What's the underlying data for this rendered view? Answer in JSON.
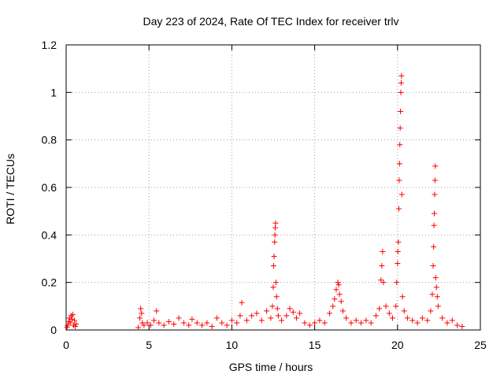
{
  "chart_data": {
    "type": "scatter",
    "title": "Day 223 of 2024, Rate Of TEC Index for receiver trlv",
    "xlabel": "GPS time / hours",
    "ylabel": "ROTI / TECUs",
    "xlim": [
      0,
      25
    ],
    "ylim": [
      0,
      1.2
    ],
    "xticks": [
      0,
      5,
      10,
      15,
      20,
      25
    ],
    "xtick_labels": [
      "0",
      "5",
      "10",
      "15",
      "20",
      "25"
    ],
    "yticks": [
      0,
      0.2,
      0.4,
      0.6,
      0.8,
      1,
      1.2
    ],
    "ytick_labels": [
      "0",
      "0.2",
      "0.4",
      "0.6",
      "0.8",
      "1",
      "1.2"
    ],
    "grid": true,
    "marker": "+",
    "marker_color": "#ff0000",
    "series": [
      {
        "name": "ROTI",
        "points": [
          [
            0.05,
            0.012
          ],
          [
            0.1,
            0.02
          ],
          [
            0.15,
            0.035
          ],
          [
            0.2,
            0.05
          ],
          [
            0.25,
            0.03
          ],
          [
            0.3,
            0.06
          ],
          [
            0.35,
            0.045
          ],
          [
            0.4,
            0.065
          ],
          [
            0.45,
            0.02
          ],
          [
            0.5,
            0.04
          ],
          [
            0.55,
            0.015
          ],
          [
            0.6,
            0.025
          ],
          [
            4.35,
            0.01
          ],
          [
            4.45,
            0.05
          ],
          [
            4.5,
            0.09
          ],
          [
            4.55,
            0.07
          ],
          [
            4.6,
            0.03
          ],
          [
            4.7,
            0.02
          ],
          [
            4.9,
            0.03
          ],
          [
            5.1,
            0.02
          ],
          [
            5.3,
            0.04
          ],
          [
            5.45,
            0.08
          ],
          [
            5.6,
            0.03
          ],
          [
            5.9,
            0.02
          ],
          [
            6.2,
            0.035
          ],
          [
            6.5,
            0.025
          ],
          [
            6.8,
            0.05
          ],
          [
            7.1,
            0.03
          ],
          [
            7.4,
            0.02
          ],
          [
            7.6,
            0.045
          ],
          [
            7.9,
            0.03
          ],
          [
            8.2,
            0.02
          ],
          [
            8.5,
            0.03
          ],
          [
            8.8,
            0.015
          ],
          [
            9.1,
            0.05
          ],
          [
            9.4,
            0.03
          ],
          [
            9.7,
            0.02
          ],
          [
            10.0,
            0.04
          ],
          [
            10.3,
            0.03
          ],
          [
            10.5,
            0.06
          ],
          [
            10.6,
            0.115
          ],
          [
            10.9,
            0.04
          ],
          [
            11.2,
            0.06
          ],
          [
            11.5,
            0.07
          ],
          [
            11.8,
            0.04
          ],
          [
            12.1,
            0.08
          ],
          [
            12.35,
            0.05
          ],
          [
            12.45,
            0.1
          ],
          [
            12.5,
            0.18
          ],
          [
            12.52,
            0.27
          ],
          [
            12.55,
            0.31
          ],
          [
            12.58,
            0.37
          ],
          [
            12.6,
            0.4
          ],
          [
            12.62,
            0.43
          ],
          [
            12.64,
            0.45
          ],
          [
            12.66,
            0.2
          ],
          [
            12.7,
            0.14
          ],
          [
            12.75,
            0.09
          ],
          [
            12.8,
            0.06
          ],
          [
            13.0,
            0.04
          ],
          [
            13.3,
            0.06
          ],
          [
            13.5,
            0.09
          ],
          [
            13.7,
            0.075
          ],
          [
            13.9,
            0.05
          ],
          [
            14.1,
            0.07
          ],
          [
            14.4,
            0.03
          ],
          [
            14.7,
            0.02
          ],
          [
            15.0,
            0.03
          ],
          [
            15.3,
            0.04
          ],
          [
            15.6,
            0.03
          ],
          [
            15.9,
            0.07
          ],
          [
            16.1,
            0.1
          ],
          [
            16.2,
            0.13
          ],
          [
            16.3,
            0.17
          ],
          [
            16.4,
            0.2
          ],
          [
            16.45,
            0.19
          ],
          [
            16.5,
            0.15
          ],
          [
            16.6,
            0.12
          ],
          [
            16.7,
            0.08
          ],
          [
            16.9,
            0.05
          ],
          [
            17.2,
            0.03
          ],
          [
            17.5,
            0.04
          ],
          [
            17.8,
            0.03
          ],
          [
            18.1,
            0.04
          ],
          [
            18.4,
            0.03
          ],
          [
            18.7,
            0.06
          ],
          [
            18.9,
            0.09
          ],
          [
            19.0,
            0.21
          ],
          [
            19.05,
            0.27
          ],
          [
            19.1,
            0.33
          ],
          [
            19.15,
            0.2
          ],
          [
            19.3,
            0.1
          ],
          [
            19.5,
            0.07
          ],
          [
            19.7,
            0.05
          ],
          [
            19.9,
            0.1
          ],
          [
            19.95,
            0.2
          ],
          [
            20.0,
            0.28
          ],
          [
            20.02,
            0.33
          ],
          [
            20.05,
            0.37
          ],
          [
            20.08,
            0.51
          ],
          [
            20.1,
            0.63
          ],
          [
            20.12,
            0.7
          ],
          [
            20.14,
            0.78
          ],
          [
            20.16,
            0.85
          ],
          [
            20.18,
            0.92
          ],
          [
            20.2,
            1.0
          ],
          [
            20.22,
            1.04
          ],
          [
            20.24,
            1.07
          ],
          [
            20.26,
            0.57
          ],
          [
            20.3,
            0.14
          ],
          [
            20.4,
            0.08
          ],
          [
            20.6,
            0.05
          ],
          [
            20.9,
            0.04
          ],
          [
            21.2,
            0.03
          ],
          [
            21.5,
            0.05
          ],
          [
            21.8,
            0.04
          ],
          [
            22.0,
            0.08
          ],
          [
            22.1,
            0.15
          ],
          [
            22.15,
            0.27
          ],
          [
            22.18,
            0.35
          ],
          [
            22.2,
            0.44
          ],
          [
            22.22,
            0.49
          ],
          [
            22.24,
            0.57
          ],
          [
            22.26,
            0.63
          ],
          [
            22.28,
            0.69
          ],
          [
            22.3,
            0.22
          ],
          [
            22.35,
            0.18
          ],
          [
            22.4,
            0.14
          ],
          [
            22.45,
            0.1
          ],
          [
            22.7,
            0.05
          ],
          [
            23.0,
            0.03
          ],
          [
            23.3,
            0.04
          ],
          [
            23.6,
            0.02
          ],
          [
            23.9,
            0.015
          ]
        ]
      }
    ]
  }
}
